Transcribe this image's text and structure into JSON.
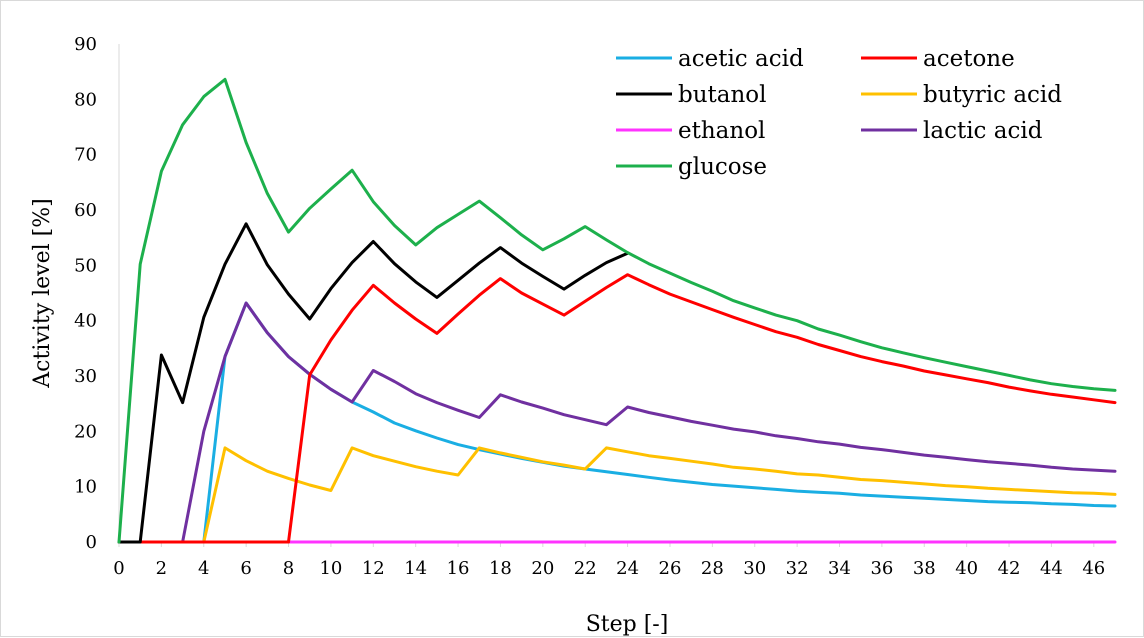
{
  "chart_data": {
    "type": "line",
    "xlabel": "Step [-]",
    "ylabel": "Activity level [%]",
    "xlim": [
      0,
      47
    ],
    "ylim": [
      0,
      90
    ],
    "xticks": [
      0,
      2,
      4,
      6,
      8,
      10,
      12,
      14,
      16,
      18,
      20,
      22,
      24,
      26,
      28,
      30,
      32,
      34,
      36,
      38,
      40,
      42,
      44,
      46
    ],
    "yticks": [
      0,
      10,
      20,
      30,
      40,
      50,
      60,
      70,
      80,
      90
    ],
    "grid": false,
    "legend_position": "top-right",
    "series": [
      {
        "name": "acetic acid",
        "color": "#1aaee3",
        "x": [
          0,
          1,
          2,
          3,
          4,
          5,
          6,
          7,
          8,
          9,
          10,
          11,
          12,
          13,
          14,
          15,
          16,
          17,
          18,
          19,
          20,
          21,
          22,
          23,
          24,
          25,
          26,
          27,
          28,
          29,
          30,
          31,
          32,
          33,
          34,
          35,
          36,
          37,
          38,
          39,
          40,
          41,
          42,
          43,
          44,
          45,
          46,
          47
        ],
        "values": [
          0,
          0,
          0,
          0,
          0,
          33.5,
          43.2,
          37.8,
          33.5,
          30.3,
          27.6,
          25.3,
          23.5,
          21.5,
          20.1,
          18.8,
          17.6,
          16.7,
          15.9,
          15.1,
          14.4,
          13.7,
          13.2,
          12.7,
          12.2,
          11.7,
          11.2,
          10.8,
          10.4,
          10.1,
          9.8,
          9.5,
          9.2,
          9.0,
          8.8,
          8.5,
          8.3,
          8.1,
          7.9,
          7.7,
          7.5,
          7.3,
          7.2,
          7.1,
          6.9,
          6.8,
          6.6,
          6.5
        ]
      },
      {
        "name": "acetone",
        "color": "#ff0000",
        "x": [
          0,
          1,
          2,
          3,
          4,
          5,
          6,
          7,
          8,
          9,
          10,
          11,
          12,
          13,
          14,
          15,
          16,
          17,
          18,
          19,
          20,
          21,
          22,
          23,
          24,
          25,
          26,
          27,
          28,
          29,
          30,
          31,
          32,
          33,
          34,
          35,
          36,
          37,
          38,
          39,
          40,
          41,
          42,
          43,
          44,
          45,
          46,
          47
        ],
        "values": [
          0,
          0,
          0,
          0,
          0,
          0,
          0,
          0,
          0,
          30.2,
          36.5,
          41.9,
          46.4,
          43.2,
          40.3,
          37.7,
          41.2,
          44.6,
          47.6,
          45.0,
          43.0,
          41.0,
          43.5,
          46.0,
          48.3,
          46.5,
          44.8,
          43.4,
          42.0,
          40.6,
          39.3,
          38.0,
          37.0,
          35.7,
          34.6,
          33.5,
          32.6,
          31.8,
          30.9,
          30.2,
          29.5,
          28.8,
          28.0,
          27.3,
          26.7,
          26.2,
          25.7,
          25.2
        ]
      },
      {
        "name": "butanol",
        "color": "#000000",
        "x": [
          0,
          1,
          2,
          3,
          4,
          5,
          6,
          7,
          8,
          9,
          10,
          11,
          12,
          13,
          14,
          15,
          16,
          17,
          18,
          19,
          20,
          21,
          22,
          23,
          24
        ],
        "values": [
          0,
          0,
          33.8,
          25.2,
          40.6,
          50.2,
          57.5,
          50.1,
          44.8,
          40.3,
          45.8,
          50.5,
          54.3,
          50.3,
          47.0,
          44.2,
          47.3,
          50.4,
          53.2,
          50.4,
          48.0,
          45.7,
          48.2,
          50.5,
          52.2
        ]
      },
      {
        "name": "butyric acid",
        "color": "#ffc000",
        "x": [
          0,
          1,
          2,
          3,
          4,
          5,
          6,
          7,
          8,
          9,
          10,
          11,
          12,
          13,
          14,
          15,
          16,
          17,
          18,
          19,
          20,
          21,
          22,
          23,
          24,
          25,
          26,
          27,
          28,
          29,
          30,
          31,
          32,
          33,
          34,
          35,
          36,
          37,
          38,
          39,
          40,
          41,
          42,
          43,
          44,
          45,
          46,
          47
        ],
        "values": [
          0,
          0,
          0,
          0,
          0,
          17.0,
          14.7,
          12.8,
          11.5,
          10.3,
          9.3,
          17.0,
          15.6,
          14.6,
          13.6,
          12.8,
          12.1,
          17.0,
          16.1,
          15.3,
          14.5,
          13.9,
          13.2,
          17.0,
          16.3,
          15.6,
          15.1,
          14.6,
          14.1,
          13.5,
          13.2,
          12.8,
          12.3,
          12.1,
          11.7,
          11.3,
          11.1,
          10.8,
          10.5,
          10.2,
          10.0,
          9.7,
          9.5,
          9.3,
          9.1,
          8.9,
          8.8,
          8.6
        ]
      },
      {
        "name": "ethanol",
        "color": "#ff33ff",
        "x": [
          0,
          47
        ],
        "values": [
          0,
          0
        ]
      },
      {
        "name": "lactic acid",
        "color": "#7030a0",
        "x": [
          0,
          1,
          2,
          3,
          4,
          5,
          6,
          7,
          8,
          9,
          10,
          11,
          12,
          13,
          14,
          15,
          16,
          17,
          18,
          19,
          20,
          21,
          22,
          23,
          24,
          25,
          26,
          27,
          28,
          29,
          30,
          31,
          32,
          33,
          34,
          35,
          36,
          37,
          38,
          39,
          40,
          41,
          42,
          43,
          44,
          45,
          46,
          47
        ],
        "values": [
          0,
          0,
          0,
          0,
          20.0,
          33.5,
          43.2,
          37.8,
          33.5,
          30.3,
          27.6,
          25.3,
          31.0,
          29.0,
          26.8,
          25.2,
          23.8,
          22.5,
          26.6,
          25.3,
          24.2,
          23.0,
          22.1,
          21.2,
          24.4,
          23.4,
          22.6,
          21.8,
          21.1,
          20.4,
          19.9,
          19.2,
          18.7,
          18.1,
          17.7,
          17.1,
          16.7,
          16.2,
          15.7,
          15.3,
          14.9,
          14.5,
          14.2,
          13.9,
          13.5,
          13.2,
          13.0,
          12.8
        ]
      },
      {
        "name": "glucose",
        "color": "#1db04c",
        "x": [
          0,
          1,
          2,
          3,
          4,
          5,
          6,
          7,
          8,
          9,
          10,
          11,
          12,
          13,
          14,
          15,
          16,
          17,
          18,
          19,
          20,
          21,
          22,
          23,
          24,
          25,
          26,
          27,
          28,
          29,
          30,
          31,
          32,
          33,
          34,
          35,
          36,
          37,
          38,
          39,
          40,
          41,
          42,
          43,
          44,
          45,
          46,
          47
        ],
        "values": [
          0,
          50.2,
          67.0,
          75.4,
          80.5,
          83.6,
          72.2,
          63.0,
          56.0,
          60.3,
          63.8,
          67.2,
          61.5,
          57.2,
          53.7,
          56.8,
          59.2,
          61.6,
          58.6,
          55.5,
          52.8,
          54.8,
          57.0,
          54.6,
          52.3,
          50.3,
          48.6,
          46.9,
          45.3,
          43.6,
          42.3,
          41.0,
          40.0,
          38.5,
          37.4,
          36.2,
          35.1,
          34.2,
          33.3,
          32.5,
          31.7,
          30.9,
          30.1,
          29.3,
          28.6,
          28.1,
          27.7,
          27.4
        ]
      }
    ]
  }
}
